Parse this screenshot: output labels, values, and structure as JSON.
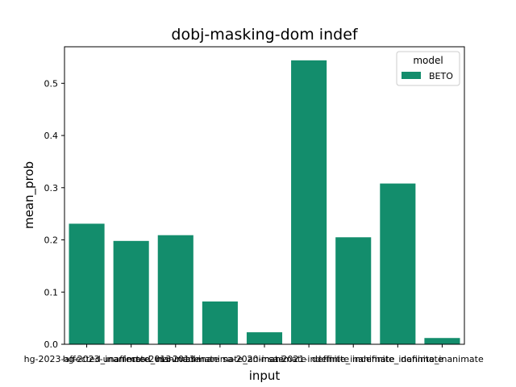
{
  "chart_data": {
    "type": "bar",
    "title": "dobj-masking-dom indef",
    "xlabel": "input",
    "ylabel": "mean_prob",
    "ylim": [
      0,
      0.57
    ],
    "yticks": [
      0.0,
      0.1,
      0.2,
      0.3,
      0.4,
      0.5
    ],
    "ytick_labels": [
      "0.0",
      "0.1",
      "0.2",
      "0.3",
      "0.4",
      "0.5"
    ],
    "grid": false,
    "legend": {
      "title": "model",
      "placement": "top-right"
    },
    "categories": [
      "hg-2023-affected_inanimate",
      "hg-2023-unaffected_inanimate",
      "ms-2013-inanimate",
      "ms-2013-inanimate_animate",
      "sa-2020-inanimate",
      "sa-2021-indefinite",
      "definite_inanimate",
      "indefinite_inanimate",
      "definite_inanimate"
    ],
    "series": [
      {
        "name": "BETO",
        "color": "#138d6c",
        "values": [
          0.231,
          0.198,
          0.209,
          0.082,
          0.023,
          0.544,
          0.205,
          0.308,
          0.012
        ]
      }
    ]
  }
}
